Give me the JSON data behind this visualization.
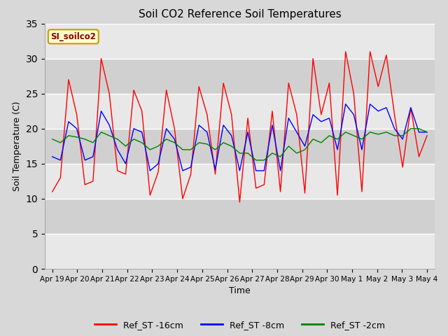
{
  "title": "Soil CO2 Reference Soil Temperatures",
  "xlabel": "Time",
  "ylabel": "Soil Temperature (C)",
  "ylim": [
    0,
    35
  ],
  "yticks": [
    0,
    5,
    10,
    15,
    20,
    25,
    30,
    35
  ],
  "fig_facecolor": "#d8d8d8",
  "plot_facecolor": "#d0d0d0",
  "grid_color": "#ffffff",
  "annotation_text": "SI_soilco2",
  "annotation_bg": "#ffffcc",
  "annotation_border": "#cc9900",
  "legend_entries": [
    "Ref_ST -16cm",
    "Ref_ST -8cm",
    "Ref_ST -2cm"
  ],
  "line_colors": [
    "red",
    "blue",
    "green"
  ],
  "x_tick_labels": [
    "Apr 19",
    "Apr 20",
    "Apr 21",
    "Apr 22",
    "Apr 23",
    "Apr 24",
    "Apr 25",
    "Apr 26",
    "Apr 27",
    "Apr 28",
    "Apr 29",
    "Apr 30",
    "May 1",
    "May 2",
    "May 3",
    "May 4"
  ],
  "xlim": [
    -0.3,
    15.3
  ],
  "ref_st_16cm": [
    11.0,
    13.0,
    27.0,
    22.0,
    12.0,
    12.5,
    30.0,
    25.0,
    14.0,
    13.5,
    25.5,
    22.5,
    10.5,
    13.8,
    25.5,
    20.0,
    10.0,
    13.5,
    26.0,
    22.0,
    13.5,
    26.5,
    22.0,
    9.5,
    21.5,
    11.5,
    12.0,
    22.5,
    11.0,
    26.5,
    22.0,
    10.8,
    30.0,
    22.0,
    26.5,
    10.5,
    31.0,
    25.0,
    11.0,
    31.0,
    26.0,
    30.5,
    22.0,
    14.5,
    23.0,
    16.0,
    19.0
  ],
  "ref_st_8cm": [
    16.0,
    15.5,
    21.0,
    20.0,
    15.5,
    16.0,
    22.5,
    20.5,
    17.0,
    15.0,
    20.0,
    19.5,
    14.0,
    15.0,
    20.0,
    18.5,
    14.0,
    14.5,
    20.5,
    19.5,
    14.2,
    20.5,
    19.0,
    14.0,
    19.5,
    14.0,
    14.0,
    20.5,
    14.0,
    21.5,
    19.5,
    17.5,
    22.0,
    21.0,
    21.5,
    17.0,
    23.5,
    22.0,
    17.0,
    23.5,
    22.5,
    23.0,
    20.0,
    18.5,
    23.0,
    19.5,
    19.5
  ],
  "ref_st_2cm": [
    18.5,
    18.0,
    19.0,
    18.8,
    18.5,
    18.0,
    19.5,
    19.0,
    18.5,
    17.5,
    18.5,
    18.0,
    17.0,
    17.5,
    18.5,
    18.0,
    17.0,
    17.0,
    18.0,
    17.8,
    17.0,
    18.0,
    17.5,
    16.5,
    16.5,
    15.5,
    15.5,
    16.5,
    16.0,
    17.5,
    16.5,
    17.0,
    18.5,
    18.0,
    19.0,
    18.5,
    19.5,
    19.0,
    18.5,
    19.5,
    19.2,
    19.5,
    19.0,
    19.0,
    20.0,
    20.0,
    19.5
  ]
}
